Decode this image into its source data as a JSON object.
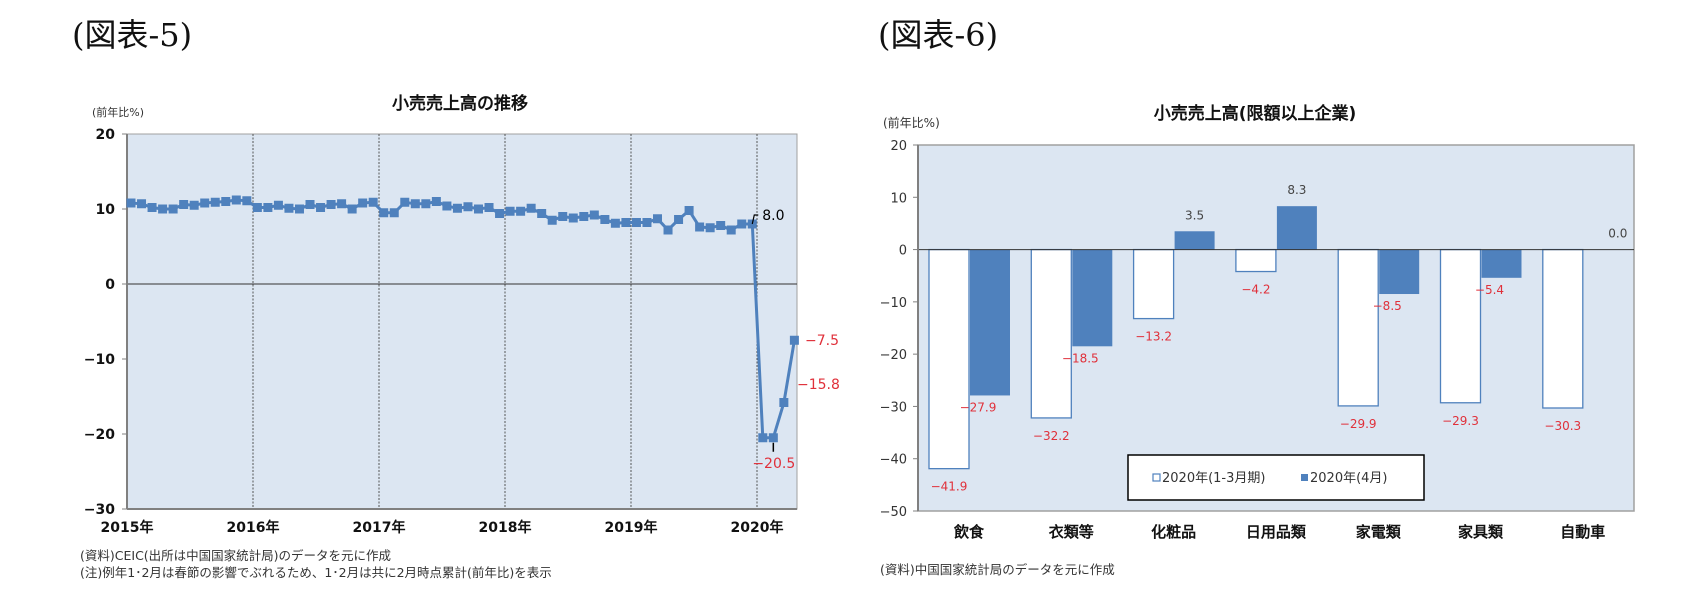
{
  "figure5": {
    "label": "(図表-5)",
    "title": "小売売上高の推移",
    "unit": "(前年比%)",
    "notes": [
      "(資料)CEIC(出所は中国国家統計局)のデータを元に作成",
      "(注)例年1･2月は春節の影響でぶれるため、1･2月は共に2月時点累計(前年比)を表示"
    ]
  },
  "figure6": {
    "label": "(図表-6)",
    "title": "小売売上高(限額以上企業)",
    "unit": "(前年比%)",
    "notes": [
      "(資料)中国国家統計局のデータを元に作成"
    ]
  },
  "colors": {
    "plot_bg": "#dce6f2",
    "series_blue": "#4f81bd",
    "label_red": "#e0303a",
    "axis": "#808080"
  },
  "chart_data": [
    {
      "type": "line",
      "title": "小売売上高の推移",
      "ylabel": "(前年比%)",
      "xlabel": "",
      "ylim": [
        -30,
        20
      ],
      "yticks": [
        -30,
        -20,
        -10,
        0,
        10,
        20
      ],
      "xtick_labels": [
        "2015年",
        "2016年",
        "2017年",
        "2018年",
        "2019年",
        "2020年"
      ],
      "grid": "vertical dashed lines at each year start",
      "x": [
        "2015-01",
        "2015-02",
        "2015-03",
        "2015-04",
        "2015-05",
        "2015-06",
        "2015-07",
        "2015-08",
        "2015-09",
        "2015-10",
        "2015-11",
        "2015-12",
        "2016-01",
        "2016-02",
        "2016-03",
        "2016-04",
        "2016-05",
        "2016-06",
        "2016-07",
        "2016-08",
        "2016-09",
        "2016-10",
        "2016-11",
        "2016-12",
        "2017-01",
        "2017-02",
        "2017-03",
        "2017-04",
        "2017-05",
        "2017-06",
        "2017-07",
        "2017-08",
        "2017-09",
        "2017-10",
        "2017-11",
        "2017-12",
        "2018-01",
        "2018-02",
        "2018-03",
        "2018-04",
        "2018-05",
        "2018-06",
        "2018-07",
        "2018-08",
        "2018-09",
        "2018-10",
        "2018-11",
        "2018-12",
        "2019-01",
        "2019-02",
        "2019-03",
        "2019-04",
        "2019-05",
        "2019-06",
        "2019-07",
        "2019-08",
        "2019-09",
        "2019-10",
        "2019-11",
        "2019-12",
        "2020-01",
        "2020-02",
        "2020-03",
        "2020-04"
      ],
      "series": [
        {
          "name": "小売売上高(前年比%)",
          "values": [
            10.8,
            10.7,
            10.2,
            10.0,
            10.0,
            10.6,
            10.5,
            10.8,
            10.9,
            11.0,
            11.2,
            11.1,
            10.2,
            10.2,
            10.5,
            10.1,
            10.0,
            10.6,
            10.2,
            10.6,
            10.7,
            10.0,
            10.8,
            10.9,
            9.5,
            9.5,
            10.9,
            10.7,
            10.7,
            11.0,
            10.4,
            10.1,
            10.3,
            10.0,
            10.2,
            9.4,
            9.7,
            9.7,
            10.1,
            9.4,
            8.5,
            9.0,
            8.8,
            9.0,
            9.2,
            8.6,
            8.1,
            8.2,
            8.2,
            8.2,
            8.7,
            7.2,
            8.6,
            9.8,
            7.6,
            7.5,
            7.8,
            7.2,
            8.0,
            8.0,
            -20.5,
            -20.5,
            -15.8,
            -7.5
          ]
        }
      ],
      "annotations": [
        {
          "text": "8.0",
          "at": "2019-12",
          "color": "#000000"
        },
        {
          "text": "-20.5",
          "at": "2020-02",
          "color": "#e0303a"
        },
        {
          "text": "-15.8",
          "at": "2020-03",
          "color": "#e0303a"
        },
        {
          "text": "-7.5",
          "at": "2020-04",
          "color": "#e0303a"
        }
      ]
    },
    {
      "type": "bar",
      "title": "小売売上高(限額以上企業)",
      "ylabel": "(前年比%)",
      "xlabel": "",
      "ylim": [
        -50,
        20
      ],
      "yticks": [
        -50,
        -40,
        -30,
        -20,
        -10,
        0,
        10,
        20
      ],
      "categories": [
        "飲食",
        "衣類等",
        "化粧品",
        "日用品類",
        "家電類",
        "家具類",
        "自動車"
      ],
      "legend": {
        "position": "inside-bottom",
        "entries": [
          "2020年(1-3月期)",
          "2020年(4月)"
        ]
      },
      "series": [
        {
          "name": "2020年(1-3月期)",
          "style": "white-fill-blue-outline",
          "values": [
            -41.9,
            -32.2,
            -13.2,
            -4.2,
            -29.9,
            -29.3,
            -30.3
          ]
        },
        {
          "name": "2020年(4月)",
          "style": "solid-blue",
          "values": [
            -27.9,
            -18.5,
            3.5,
            8.3,
            -8.5,
            -5.4,
            0.0
          ]
        }
      ]
    }
  ]
}
